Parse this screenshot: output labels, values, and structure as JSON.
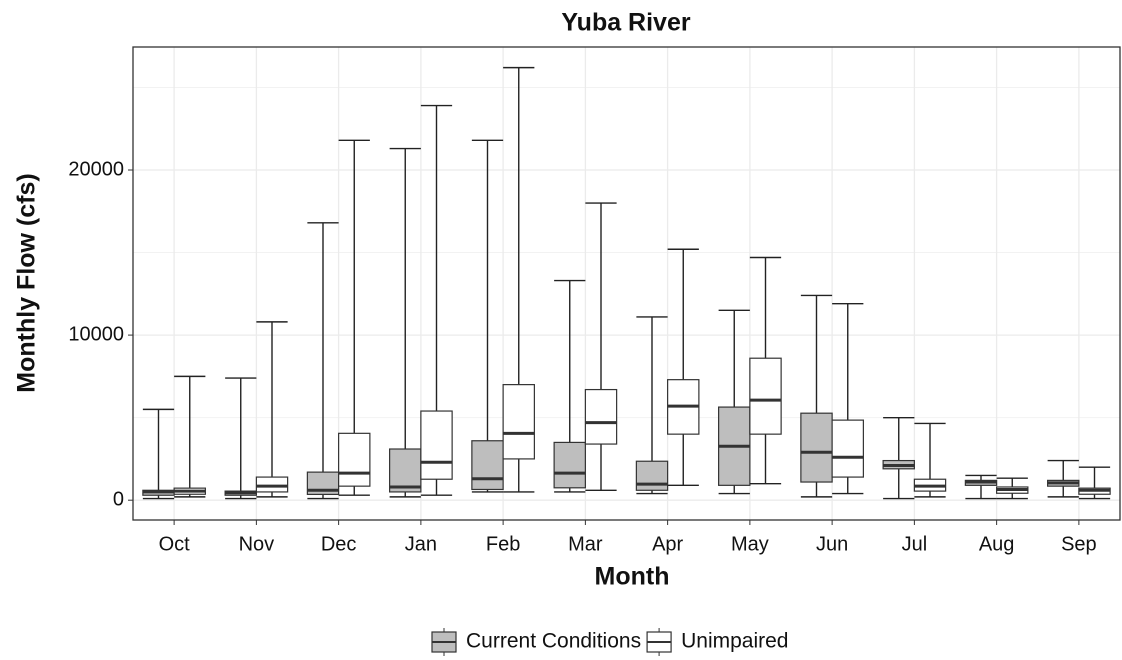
{
  "chart_data": {
    "type": "box",
    "title": "Yuba River",
    "x_label": "Month",
    "y_label": "Monthly Flow (cfs)",
    "categories": [
      "Oct",
      "Nov",
      "Dec",
      "Jan",
      "Feb",
      "Mar",
      "Apr",
      "May",
      "Jun",
      "Jul",
      "Aug",
      "Sep"
    ],
    "series": [
      {
        "name": "Current Conditions",
        "color": "#bebebe",
        "min": [
          100,
          100,
          100,
          200,
          500,
          500,
          400,
          400,
          200,
          100,
          100,
          200
        ],
        "q1": [
          300,
          300,
          350,
          500,
          650,
          750,
          600,
          900,
          1100,
          1900,
          900,
          850
        ],
        "median": [
          500,
          450,
          600,
          800,
          1300,
          1640,
          970,
          3270,
          2900,
          2100,
          1100,
          1050
        ],
        "q3": [
          600,
          550,
          1700,
          3100,
          3600,
          3500,
          2360,
          5640,
          5270,
          2400,
          1200,
          1200
        ],
        "max": [
          5500,
          7400,
          16800,
          21300,
          21800,
          13300,
          11100,
          11500,
          12400,
          5000,
          1500,
          2400
        ]
      },
      {
        "name": "Unimpaired",
        "color": "#ffffff",
        "min": [
          200,
          200,
          300,
          300,
          500,
          600,
          900,
          1000,
          400,
          200,
          100,
          100
        ],
        "q1": [
          360,
          500,
          850,
          1270,
          2500,
          3400,
          4000,
          4000,
          1400,
          550,
          420,
          360
        ],
        "median": [
          550,
          850,
          1640,
          2300,
          4050,
          4700,
          5700,
          6060,
          2600,
          850,
          650,
          600
        ],
        "q3": [
          730,
          1400,
          4050,
          5400,
          7000,
          6700,
          7300,
          8600,
          4850,
          1270,
          800,
          730
        ],
        "max": [
          7500,
          10800,
          21800,
          23900,
          26200,
          18000,
          15200,
          14700,
          11900,
          4650,
          1330,
          2000
        ]
      }
    ],
    "ylim": [
      -1200,
      27450
    ],
    "yticks": [
      0,
      10000,
      20000
    ],
    "minor_yticks": [
      5000,
      15000,
      25000
    ],
    "grid": true,
    "legend": "bottom"
  }
}
